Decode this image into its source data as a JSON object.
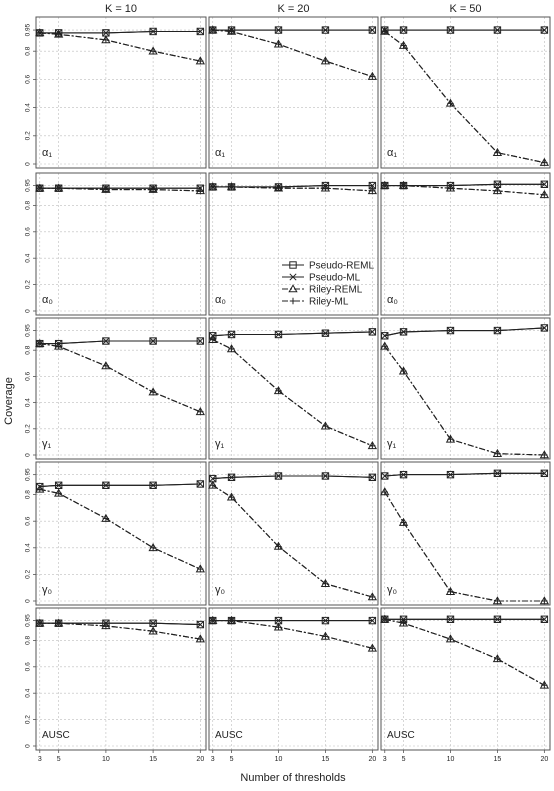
{
  "chart_data": {
    "type": "line",
    "x": [
      3,
      5,
      10,
      15,
      20
    ],
    "xlabel": "Number of thresholds",
    "ylabel": "Coverage",
    "yticks": [
      0,
      0.2,
      0.4,
      0.6,
      0.8,
      0.95
    ],
    "ytick_labels": [
      "0",
      "0.2",
      "0.4",
      "0.6",
      "0.8",
      "0.95"
    ],
    "ylim": [
      0,
      1
    ],
    "grid": true,
    "columns": [
      "K = 10",
      "K = 20",
      "K = 50"
    ],
    "legend": {
      "placement": "center",
      "entries": [
        {
          "name": "Pseudo-REML",
          "marker": "square",
          "dash": "solid"
        },
        {
          "name": "Pseudo-ML",
          "marker": "cross",
          "dash": "solid"
        },
        {
          "name": "Riley-REML",
          "marker": "triangle",
          "dash": "dashdot"
        },
        {
          "name": "Riley-ML",
          "marker": "plus",
          "dash": "dashdot"
        }
      ]
    },
    "panels": [
      {
        "param": "α₁",
        "cells": [
          {
            "series": [
              [
                0.93,
                0.93,
                0.93,
                0.94,
                0.94
              ],
              [
                0.93,
                0.93,
                0.93,
                0.94,
                0.94
              ],
              [
                0.93,
                0.92,
                0.88,
                0.8,
                0.73
              ],
              [
                0.93,
                0.92,
                0.88,
                0.8,
                0.73
              ]
            ]
          },
          {
            "series": [
              [
                0.95,
                0.95,
                0.95,
                0.95,
                0.95
              ],
              [
                0.95,
                0.95,
                0.95,
                0.95,
                0.95
              ],
              [
                0.95,
                0.94,
                0.85,
                0.73,
                0.62
              ],
              [
                0.95,
                0.94,
                0.85,
                0.73,
                0.62
              ]
            ]
          },
          {
            "series": [
              [
                0.95,
                0.95,
                0.95,
                0.95,
                0.95
              ],
              [
                0.95,
                0.95,
                0.95,
                0.95,
                0.95
              ],
              [
                0.94,
                0.84,
                0.43,
                0.08,
                0.01
              ],
              [
                0.94,
                0.84,
                0.43,
                0.08,
                0.01
              ]
            ]
          }
        ]
      },
      {
        "param": "α₀",
        "cells": [
          {
            "series": [
              [
                0.93,
                0.93,
                0.93,
                0.93,
                0.93
              ],
              [
                0.93,
                0.93,
                0.93,
                0.93,
                0.93
              ],
              [
                0.93,
                0.93,
                0.92,
                0.92,
                0.91
              ],
              [
                0.93,
                0.93,
                0.92,
                0.92,
                0.91
              ]
            ]
          },
          {
            "series": [
              [
                0.94,
                0.94,
                0.94,
                0.95,
                0.95
              ],
              [
                0.94,
                0.94,
                0.94,
                0.95,
                0.95
              ],
              [
                0.94,
                0.94,
                0.93,
                0.93,
                0.91
              ],
              [
                0.94,
                0.94,
                0.93,
                0.93,
                0.91
              ]
            ]
          },
          {
            "series": [
              [
                0.95,
                0.95,
                0.95,
                0.96,
                0.96
              ],
              [
                0.95,
                0.95,
                0.95,
                0.96,
                0.96
              ],
              [
                0.95,
                0.95,
                0.93,
                0.91,
                0.88
              ],
              [
                0.95,
                0.95,
                0.93,
                0.91,
                0.88
              ]
            ]
          }
        ]
      },
      {
        "param": "γ₁",
        "cells": [
          {
            "series": [
              [
                0.85,
                0.85,
                0.87,
                0.87,
                0.87
              ],
              [
                0.85,
                0.85,
                0.87,
                0.87,
                0.87
              ],
              [
                0.85,
                0.83,
                0.68,
                0.48,
                0.33
              ],
              [
                0.85,
                0.83,
                0.68,
                0.48,
                0.33
              ]
            ]
          },
          {
            "series": [
              [
                0.91,
                0.92,
                0.92,
                0.93,
                0.94
              ],
              [
                0.91,
                0.92,
                0.92,
                0.93,
                0.94
              ],
              [
                0.88,
                0.81,
                0.49,
                0.22,
                0.07
              ],
              [
                0.88,
                0.81,
                0.49,
                0.22,
                0.07
              ]
            ]
          },
          {
            "series": [
              [
                0.91,
                0.94,
                0.95,
                0.95,
                0.97
              ],
              [
                0.91,
                0.94,
                0.95,
                0.95,
                0.97
              ],
              [
                0.83,
                0.64,
                0.12,
                0.01,
                0.0
              ],
              [
                0.83,
                0.64,
                0.12,
                0.01,
                0.0
              ]
            ]
          }
        ]
      },
      {
        "param": "γ₀",
        "cells": [
          {
            "series": [
              [
                0.86,
                0.87,
                0.87,
                0.87,
                0.88
              ],
              [
                0.86,
                0.87,
                0.87,
                0.87,
                0.88
              ],
              [
                0.84,
                0.81,
                0.62,
                0.4,
                0.24
              ],
              [
                0.84,
                0.81,
                0.62,
                0.4,
                0.24
              ]
            ]
          },
          {
            "series": [
              [
                0.92,
                0.93,
                0.94,
                0.94,
                0.93
              ],
              [
                0.92,
                0.93,
                0.94,
                0.94,
                0.93
              ],
              [
                0.87,
                0.78,
                0.41,
                0.13,
                0.03
              ],
              [
                0.87,
                0.78,
                0.41,
                0.13,
                0.03
              ]
            ]
          },
          {
            "series": [
              [
                0.94,
                0.95,
                0.95,
                0.96,
                0.96
              ],
              [
                0.94,
                0.95,
                0.95,
                0.96,
                0.96
              ],
              [
                0.82,
                0.59,
                0.07,
                0.0,
                0.0
              ],
              [
                0.82,
                0.59,
                0.07,
                0.0,
                0.0
              ]
            ]
          }
        ]
      },
      {
        "param": "AUSC",
        "cells": [
          {
            "series": [
              [
                0.93,
                0.93,
                0.93,
                0.93,
                0.92
              ],
              [
                0.93,
                0.93,
                0.93,
                0.93,
                0.92
              ],
              [
                0.93,
                0.93,
                0.91,
                0.87,
                0.81
              ],
              [
                0.93,
                0.93,
                0.91,
                0.87,
                0.81
              ]
            ]
          },
          {
            "series": [
              [
                0.95,
                0.95,
                0.95,
                0.95,
                0.95
              ],
              [
                0.95,
                0.95,
                0.95,
                0.95,
                0.95
              ],
              [
                0.95,
                0.95,
                0.9,
                0.83,
                0.74
              ],
              [
                0.95,
                0.95,
                0.9,
                0.83,
                0.74
              ]
            ]
          },
          {
            "series": [
              [
                0.96,
                0.96,
                0.96,
                0.96,
                0.96
              ],
              [
                0.96,
                0.96,
                0.96,
                0.96,
                0.96
              ],
              [
                0.96,
                0.93,
                0.81,
                0.66,
                0.46
              ],
              [
                0.96,
                0.93,
                0.81,
                0.66,
                0.46
              ]
            ]
          }
        ]
      }
    ]
  }
}
